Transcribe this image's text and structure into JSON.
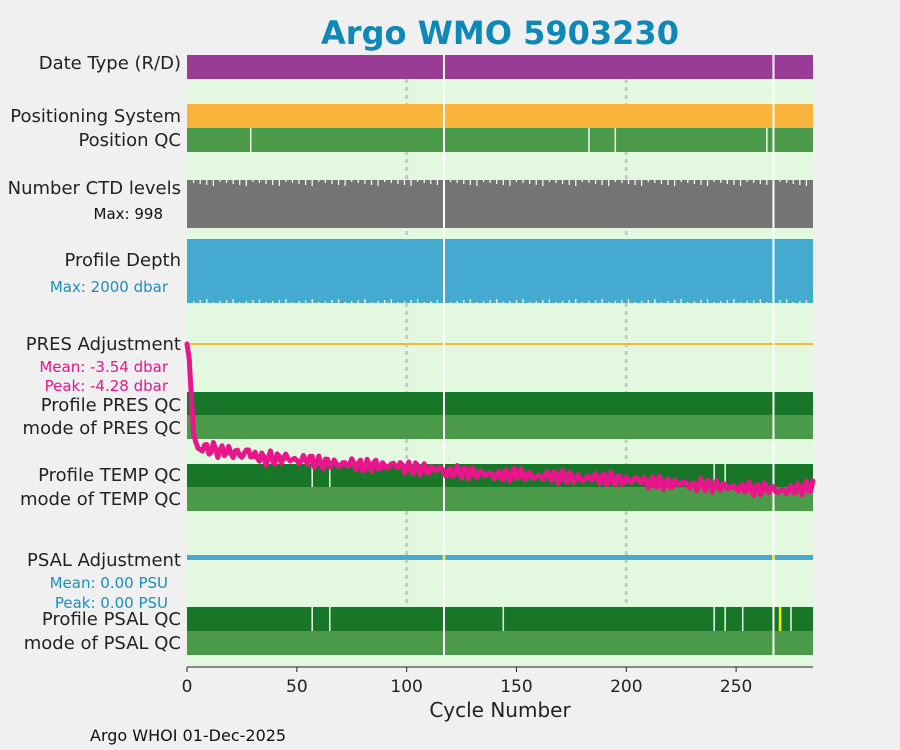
{
  "title": "Argo WMO 5903230",
  "footer": "Argo WHOI 01-Dec-2025",
  "colors": {
    "title": "#0e88b8",
    "panel_bg": "#e2f8df",
    "date_type": "#9a3c96",
    "positioning_system": "#fbb43c",
    "position_qc": "#4a9a4a",
    "ctd_levels": "#757575",
    "profile_depth": "#44aad0",
    "pres_adj_line": "#f0b840",
    "pres_adj_series": "#e8168a",
    "profile_qc_dark": "#177628",
    "mode_qc_light": "#4a9a4a",
    "psal_adj": "#44aad0",
    "psal_adj_flag": "#e8e840",
    "psal_qc_flag": "#f0f000",
    "mean_peak_pres": "#e8168a",
    "mean_peak_psal": "#1a8fc0",
    "grid": "#c8c8c8"
  },
  "labels": {
    "date_type": "Date Type (R/D)",
    "positioning_system": "Positioning System",
    "position_qc": "Position QC",
    "ctd_levels": "Number CTD levels",
    "ctd_max": "Max: 998",
    "profile_depth": "Profile Depth",
    "depth_max": "Max: 2000 dbar",
    "pres_adjustment": "PRES Adjustment",
    "pres_mean": "Mean: -3.54 dbar",
    "pres_peak": "Peak: -4.28 dbar",
    "profile_pres_qc": "Profile PRES QC",
    "mode_pres_qc": "mode of PRES QC",
    "profile_temp_qc": "Profile TEMP QC",
    "mode_temp_qc": "mode of TEMP QC",
    "psal_adjustment": "PSAL Adjustment",
    "psal_mean": "Mean: 0.00 PSU",
    "psal_peak": "Peak: 0.00 PSU",
    "profile_psal_qc": "Profile PSAL QC",
    "mode_psal_qc": "mode of PSAL QC"
  },
  "chart_data": {
    "type": "bar",
    "title": "Argo WMO 5903230",
    "xlabel": "Cycle Number",
    "ylabel": "",
    "xlim": [
      0,
      285
    ],
    "xticks": [
      0,
      50,
      100,
      150,
      200,
      250
    ],
    "gridlines_x": [
      100,
      200
    ],
    "cycles_total": 285,
    "missing_cycles": [
      117,
      267
    ],
    "position_qc_flag_cycles": [
      29,
      183,
      195,
      264
    ],
    "temp_qc_flag_cycles": [
      57,
      65,
      240,
      245
    ],
    "psal_qc_flag_cycles": [
      57,
      65,
      144,
      240,
      245,
      253,
      275
    ],
    "psal_qc_yellow_cycles": [
      270
    ],
    "pres_adjustment_dbar": {
      "cycles": [
        0,
        1,
        2,
        3,
        5,
        8,
        10,
        12,
        15,
        18,
        20,
        22,
        25,
        28,
        30,
        32,
        35,
        38,
        40,
        45,
        50,
        55,
        60,
        65,
        70,
        75,
        80,
        85,
        90,
        95,
        100,
        105,
        110,
        115,
        118,
        120,
        125,
        130,
        135,
        140,
        145,
        150,
        155,
        160,
        165,
        170,
        175,
        180,
        185,
        190,
        195,
        200,
        205,
        210,
        215,
        220,
        225,
        230,
        235,
        240,
        245,
        250,
        255,
        260,
        265,
        270,
        275,
        280,
        285
      ],
      "values": [
        0.0,
        -0.4,
        -1.5,
        -2.5,
        -2.95,
        -2.85,
        -2.95,
        -2.9,
        -3.0,
        -2.95,
        -3.05,
        -3.0,
        -3.1,
        -2.95,
        -3.15,
        -3.1,
        -3.2,
        -3.15,
        -3.2,
        -3.15,
        -3.25,
        -3.2,
        -3.3,
        -3.3,
        -3.35,
        -3.3,
        -3.4,
        -3.35,
        -3.4,
        -3.35,
        -3.45,
        -3.45,
        -3.5,
        -3.45,
        -3.6,
        -3.55,
        -3.55,
        -3.6,
        -3.6,
        -3.65,
        -3.65,
        -3.6,
        -3.65,
        -3.7,
        -3.65,
        -3.7,
        -3.7,
        -3.75,
        -3.7,
        -3.75,
        -3.75,
        -3.8,
        -3.75,
        -3.85,
        -3.85,
        -3.9,
        -3.85,
        -3.95,
        -3.9,
        -3.95,
        -3.95,
        -4.0,
        -4.0,
        -4.05,
        -4.0,
        -4.1,
        -4.05,
        -4.0,
        -3.95
      ]
    },
    "ctd_levels_max": 998,
    "profile_depth_max_dbar": 2000,
    "psal_adjustment_psu": {
      "mean": 0.0,
      "peak": 0.0
    }
  }
}
